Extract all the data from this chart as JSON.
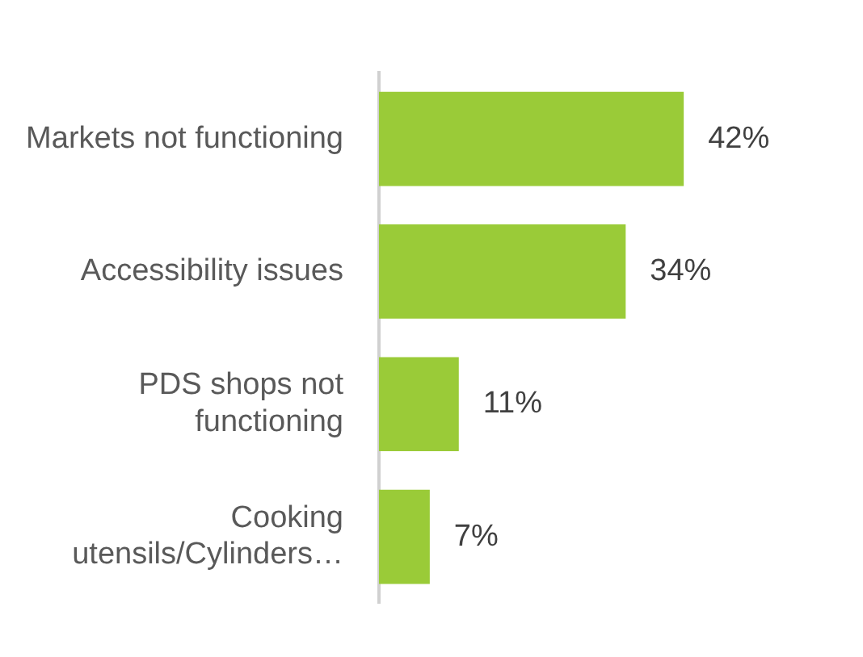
{
  "chart_data": {
    "type": "bar",
    "orientation": "horizontal",
    "categories": [
      "Markets not functioning",
      "Accessibility issues",
      "PDS shops not functioning",
      "Cooking utensils/Cylinders…"
    ],
    "values": [
      42,
      34,
      11,
      7
    ],
    "value_labels": [
      "42%",
      "34%",
      "11%",
      "7%"
    ],
    "color": "#9acb38",
    "grid": false,
    "legend": false
  }
}
